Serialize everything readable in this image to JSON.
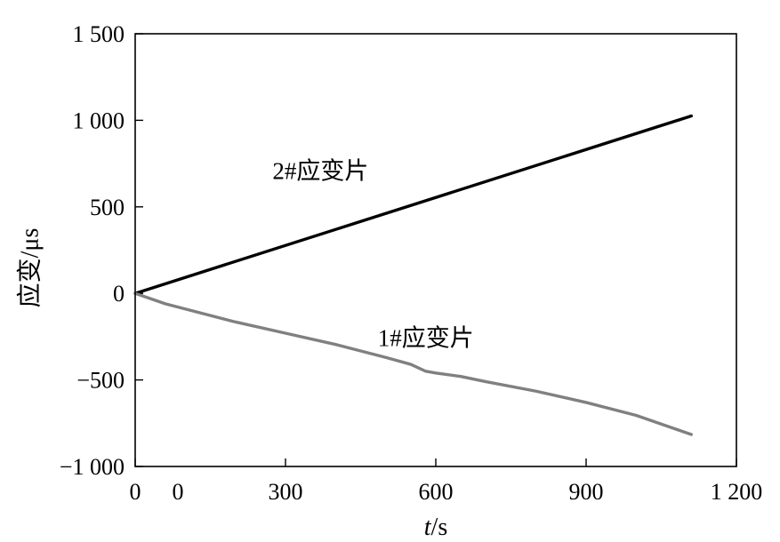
{
  "chart_data": {
    "type": "line",
    "title": "",
    "xlabel_italic": "t",
    "xlabel_unit": "/s",
    "ylabel": "应变/μs",
    "xlim": [
      0,
      1200
    ],
    "ylim": [
      -1000,
      1500
    ],
    "x_ticks": [
      0,
      300,
      600,
      900,
      1200
    ],
    "x_tick_labels": [
      "0",
      "300",
      "600",
      "900",
      "1 200"
    ],
    "x_extra_label": "0",
    "y_ticks": [
      -1000,
      -500,
      0,
      500,
      1000,
      1500
    ],
    "y_tick_labels": [
      "−1 000",
      "−500",
      "0",
      "500",
      "1 000",
      "1 500"
    ],
    "grid": false,
    "series": [
      {
        "name": "2#应变片",
        "color": "#000000",
        "x": [
          0,
          1110
        ],
        "y": [
          0,
          1025
        ]
      },
      {
        "name": "1#应变片",
        "color": "#808080",
        "x": [
          0,
          30,
          60,
          100,
          200,
          300,
          400,
          500,
          550,
          580,
          600,
          650,
          700,
          800,
          900,
          1000,
          1110
        ],
        "y": [
          0,
          -30,
          -60,
          -90,
          -165,
          -230,
          -295,
          -370,
          -410,
          -450,
          -460,
          -480,
          -510,
          -565,
          -630,
          -705,
          -815
        ]
      }
    ],
    "annotations": [
      {
        "text": "2#应变片",
        "x": 370,
        "y": 660
      },
      {
        "text": "1#应变片",
        "x": 580,
        "y": -305
      }
    ]
  }
}
